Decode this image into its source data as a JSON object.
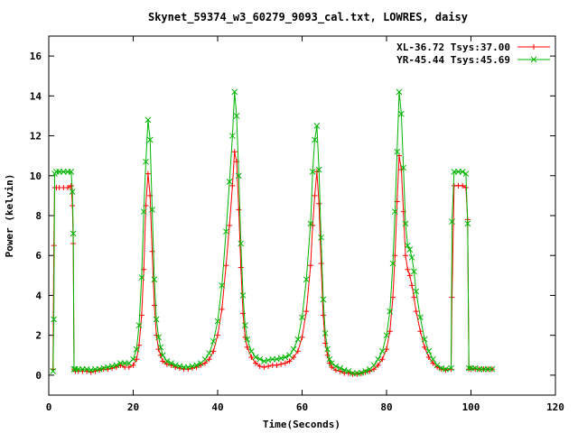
{
  "chart_data": {
    "type": "line",
    "title": "Skynet_59374_w3_60279_9093_cal.txt, LOWRES, daisy",
    "xlabel": "Time(Seconds)",
    "ylabel": "Power (kelvin)",
    "xlim": [
      0,
      120
    ],
    "ylim": [
      -1,
      17
    ],
    "xticks": [
      "0",
      "20",
      "40",
      "60",
      "80",
      "100",
      "120"
    ],
    "yticks": [
      "0",
      "2",
      "4",
      "6",
      "8",
      "10",
      "12",
      "14",
      "16"
    ],
    "grid": false,
    "legend_position": "top-right",
    "series": [
      {
        "name": "XL-36.72 Tsys:37.00",
        "color": "#ff0000",
        "marker": "plus",
        "x": [
          1.0,
          1.2,
          1.4,
          1.8,
          2.5,
          3.5,
          4.5,
          5.3,
          5.6,
          5.8,
          6.0,
          6.3,
          7,
          8,
          9,
          10,
          11,
          12,
          13,
          14,
          15,
          16,
          17,
          18,
          19,
          20,
          20.8,
          21.4,
          22.0,
          22.5,
          23.0,
          23.5,
          24.0,
          24.5,
          25.0,
          25.5,
          26.0,
          26.5,
          27,
          28,
          29,
          30,
          31,
          32,
          33,
          34,
          35,
          36,
          37,
          38,
          39,
          40,
          41,
          42,
          42.8,
          43.5,
          44.0,
          44.5,
          45.0,
          45.5,
          46.0,
          46.5,
          47,
          48,
          49,
          50,
          51,
          52,
          53,
          54,
          55,
          56,
          57,
          58,
          59,
          60,
          61,
          62,
          62.5,
          63.0,
          63.5,
          64.0,
          64.5,
          65.0,
          65.5,
          66.0,
          66.5,
          67,
          68,
          69,
          70,
          71,
          72,
          73,
          74,
          75,
          76,
          77,
          78,
          79,
          80,
          80.8,
          81.5,
          82.0,
          82.5,
          83.0,
          83.5,
          84.0,
          84.5,
          85.0,
          85.5,
          86.0,
          86.5,
          87.0,
          88,
          89,
          90,
          91,
          92,
          93,
          94,
          95.3,
          95.5,
          96,
          97,
          98,
          98.8,
          99.2,
          99.5,
          100,
          101,
          102,
          103,
          104,
          105
        ],
        "y": [
          0.3,
          6.5,
          9.4,
          9.4,
          9.4,
          9.4,
          9.4,
          9.5,
          8.5,
          6.6,
          0.3,
          0.2,
          0.2,
          0.2,
          0.2,
          0.15,
          0.2,
          0.25,
          0.3,
          0.3,
          0.35,
          0.4,
          0.5,
          0.4,
          0.4,
          0.5,
          0.8,
          1.5,
          3.0,
          5.3,
          8.5,
          10.1,
          9.0,
          6.2,
          3.5,
          2.0,
          1.3,
          1.0,
          0.7,
          0.55,
          0.5,
          0.4,
          0.35,
          0.3,
          0.3,
          0.35,
          0.4,
          0.5,
          0.6,
          0.8,
          1.2,
          2.0,
          3.3,
          5.5,
          7.5,
          9.5,
          11.2,
          10.7,
          8.3,
          5.4,
          3.1,
          1.9,
          1.4,
          0.9,
          0.6,
          0.45,
          0.4,
          0.45,
          0.5,
          0.5,
          0.55,
          0.6,
          0.7,
          0.9,
          1.2,
          1.9,
          3.2,
          5.5,
          7.5,
          9.0,
          10.2,
          8.6,
          5.6,
          3.0,
          1.6,
          1.0,
          0.6,
          0.4,
          0.25,
          0.2,
          0.1,
          0.1,
          0.05,
          0.05,
          0.08,
          0.15,
          0.2,
          0.3,
          0.5,
          0.8,
          1.3,
          2.2,
          3.9,
          6.0,
          8.7,
          11.0,
          10.3,
          8.2,
          6.0,
          5.3,
          5.0,
          4.5,
          3.9,
          3.2,
          2.2,
          1.4,
          0.9,
          0.6,
          0.4,
          0.3,
          0.25,
          0.3,
          3.9,
          9.5,
          9.5,
          9.5,
          9.4,
          7.8,
          0.3,
          0.3,
          0.3,
          0.3,
          0.3,
          0.3,
          0.3
        ]
      },
      {
        "name": "YR-45.44 Tsys:45.69",
        "color": "#00b400",
        "marker": "cross",
        "x": [
          1.0,
          1.2,
          1.4,
          1.8,
          2.5,
          3.5,
          4.5,
          5.3,
          5.6,
          5.8,
          6.0,
          6.3,
          7,
          8,
          9,
          10,
          11,
          12,
          13,
          14,
          15,
          16,
          17,
          18,
          19,
          20,
          20.8,
          21.4,
          22.0,
          22.5,
          23.0,
          23.5,
          24.0,
          24.5,
          25.0,
          25.5,
          26.0,
          26.5,
          27,
          28,
          29,
          30,
          31,
          32,
          33,
          34,
          35,
          36,
          37,
          38,
          39,
          40,
          41,
          42,
          42.8,
          43.5,
          44.0,
          44.5,
          45.0,
          45.5,
          46.0,
          46.5,
          47,
          48,
          49,
          50,
          51,
          52,
          53,
          54,
          55,
          56,
          57,
          58,
          59,
          60,
          61,
          62,
          62.5,
          63.0,
          63.5,
          64.0,
          64.5,
          65.0,
          65.5,
          66.0,
          66.5,
          67,
          68,
          69,
          70,
          71,
          72,
          73,
          74,
          75,
          76,
          77,
          78,
          79,
          80,
          80.8,
          81.5,
          82.0,
          82.5,
          83.0,
          83.5,
          84.0,
          84.5,
          85.0,
          85.5,
          86.0,
          86.5,
          87.0,
          88,
          89,
          90,
          91,
          92,
          93,
          94,
          95.3,
          95.5,
          96,
          97,
          98,
          98.8,
          99.2,
          99.5,
          100,
          101,
          102,
          103,
          104,
          105
        ],
        "y": [
          0.2,
          2.8,
          10.1,
          10.2,
          10.2,
          10.2,
          10.2,
          10.2,
          9.2,
          7.1,
          0.3,
          0.3,
          0.3,
          0.3,
          0.3,
          0.25,
          0.3,
          0.3,
          0.35,
          0.4,
          0.45,
          0.5,
          0.6,
          0.6,
          0.6,
          0.8,
          1.3,
          2.5,
          4.9,
          8.2,
          10.7,
          12.8,
          11.8,
          8.3,
          4.8,
          2.8,
          1.9,
          1.4,
          1.0,
          0.7,
          0.6,
          0.5,
          0.45,
          0.4,
          0.4,
          0.45,
          0.5,
          0.6,
          0.8,
          1.1,
          1.7,
          2.7,
          4.5,
          7.2,
          9.7,
          12.0,
          14.2,
          13.0,
          10.0,
          6.6,
          4.0,
          2.5,
          1.8,
          1.2,
          0.9,
          0.8,
          0.7,
          0.75,
          0.8,
          0.8,
          0.85,
          0.9,
          1.0,
          1.3,
          1.8,
          2.9,
          4.8,
          7.6,
          10.2,
          11.8,
          12.5,
          10.3,
          6.9,
          3.8,
          2.1,
          1.3,
          0.8,
          0.6,
          0.45,
          0.35,
          0.25,
          0.2,
          0.1,
          0.1,
          0.12,
          0.2,
          0.3,
          0.5,
          0.8,
          1.2,
          2.0,
          3.2,
          5.6,
          8.2,
          11.2,
          14.2,
          13.1,
          10.4,
          7.6,
          6.5,
          6.3,
          5.9,
          5.2,
          4.2,
          2.9,
          1.8,
          1.2,
          0.8,
          0.5,
          0.35,
          0.3,
          0.35,
          7.7,
          10.2,
          10.2,
          10.2,
          10.1,
          7.6,
          0.35,
          0.35,
          0.35,
          0.3,
          0.3,
          0.3,
          0.3
        ]
      }
    ]
  }
}
